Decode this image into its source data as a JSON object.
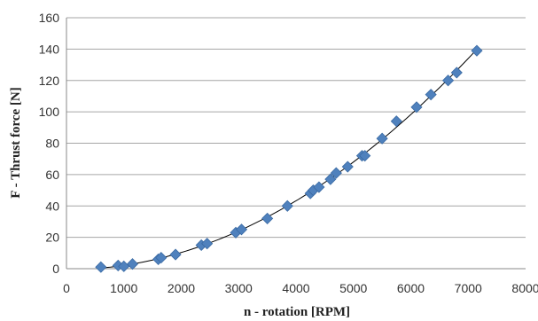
{
  "chart_data": {
    "type": "scatter",
    "xlabel": "n - rotation [RPM]",
    "ylabel": "F - Thrust force [N]",
    "xlim": [
      0,
      8000
    ],
    "ylim": [
      0,
      160
    ],
    "xticks": [
      0,
      1000,
      2000,
      3000,
      4000,
      5000,
      6000,
      7000,
      8000
    ],
    "yticks": [
      0,
      20,
      40,
      60,
      80,
      100,
      120,
      140,
      160
    ],
    "grid": "horizontal",
    "legend": "none",
    "marker": "diamond",
    "marker_color": "#4f81bd",
    "trendline": {
      "type": "polynomial",
      "x_range": [
        600,
        7150
      ],
      "color": "#000000"
    },
    "series": [
      {
        "x": [
          600,
          900,
          1000,
          1150,
          1600,
          1650,
          1900,
          2350,
          2450,
          2950,
          3050,
          3500,
          3850,
          4250,
          4300,
          4400,
          4600,
          4700,
          4900,
          5150,
          5200,
          5500,
          5750,
          6100,
          6350,
          6650,
          6800,
          7150
        ],
        "y": [
          1,
          2,
          1.5,
          3,
          6,
          7,
          9,
          15,
          16,
          23,
          25,
          32,
          40,
          48,
          50,
          52,
          57,
          61,
          65,
          72,
          72,
          83,
          94,
          103,
          111,
          120,
          125,
          139
        ]
      }
    ]
  }
}
